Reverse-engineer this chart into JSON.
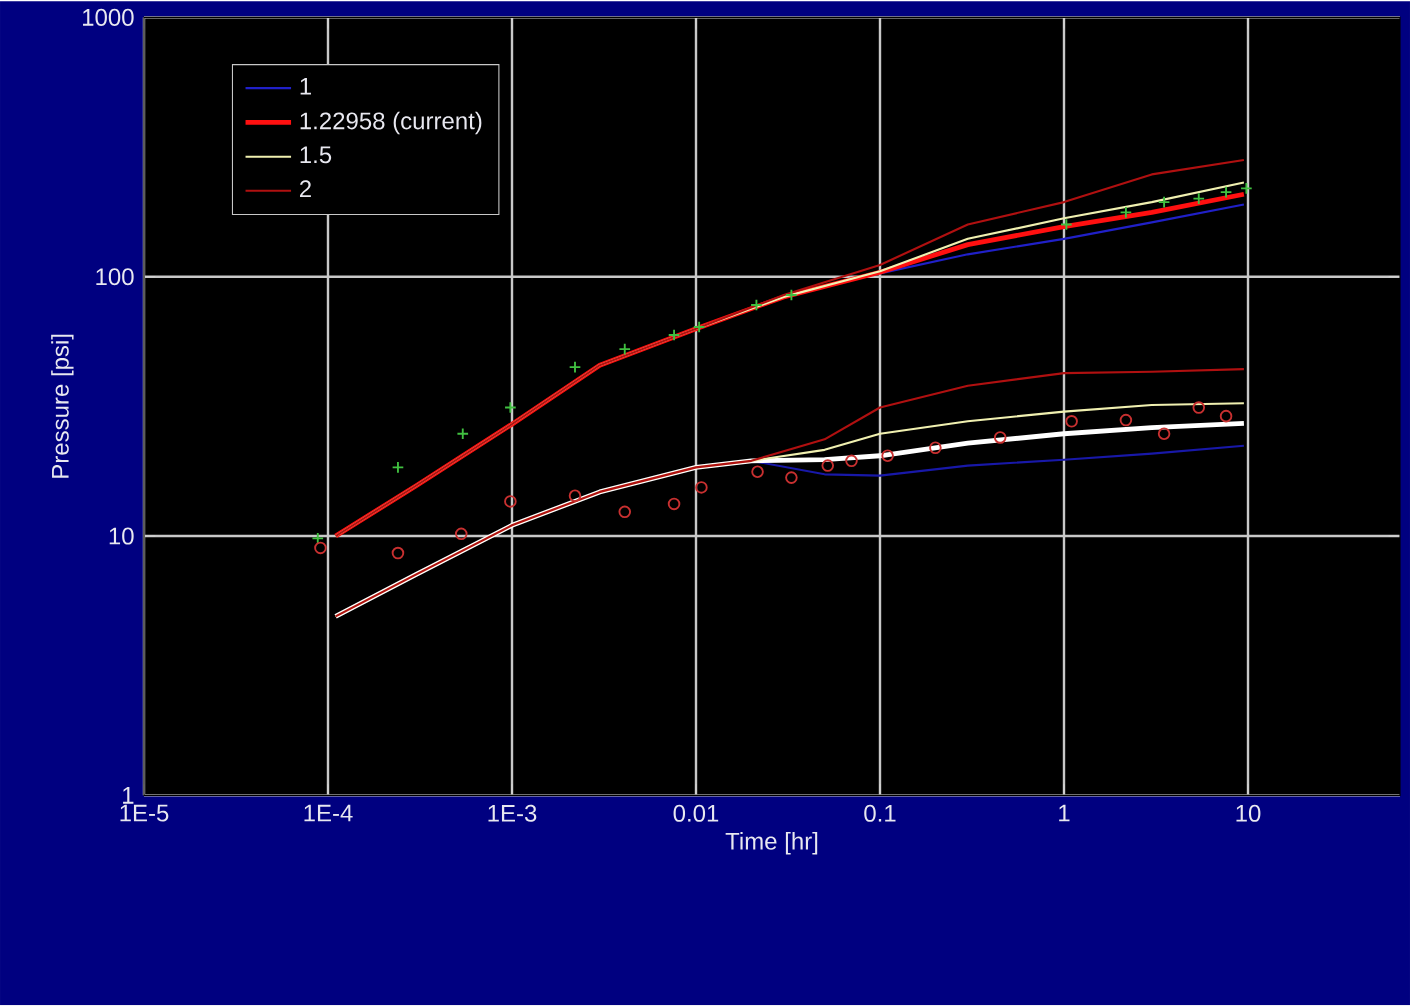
{
  "chart_data": {
    "type": "line",
    "xlabel": "Time [hr]",
    "ylabel": "Pressure [psi]",
    "log": "xy",
    "grid": true,
    "legend": "top left",
    "xlim": [
      1e-05,
      67
    ],
    "ylim": [
      1,
      1000
    ],
    "xticks": [
      {
        "value": 1e-05,
        "label": "1E-5"
      },
      {
        "value": 0.0001,
        "label": "1E-4"
      },
      {
        "value": 0.001,
        "label": "1E-3"
      },
      {
        "value": 0.01,
        "label": "0.01"
      },
      {
        "value": 0.1,
        "label": "0.1"
      },
      {
        "value": 1,
        "label": "1"
      },
      {
        "value": 10,
        "label": "10"
      }
    ],
    "yticks": [
      1,
      10,
      100,
      1000
    ],
    "series": [
      {
        "name": "1",
        "color": "#2020c8",
        "x": [
          0.1,
          0.3,
          1,
          3,
          9.5
        ],
        "values": [
          103,
          122,
          140,
          162,
          190
        ]
      },
      {
        "name": "1.22958  (current)",
        "color": "#ff1010",
        "x": [
          0.00011,
          0.0003,
          0.001,
          0.003,
          0.01,
          0.03,
          0.1,
          0.3,
          1,
          3,
          9.5
        ],
        "values": [
          10,
          15.6,
          27,
          45.6,
          63,
          83.6,
          104,
          133,
          156,
          177,
          208
        ]
      },
      {
        "name": "1.5",
        "color": "#f0f0b0",
        "x": [
          0.00011,
          0.0003,
          0.001,
          0.003,
          0.01,
          0.03,
          0.1,
          0.3,
          1,
          3,
          9.5
        ],
        "values": [
          10,
          15.6,
          27,
          45.6,
          63,
          83.6,
          105,
          140,
          168,
          194,
          231
        ]
      },
      {
        "name": "2",
        "color": "#b01010",
        "x": [
          0.00011,
          0.0003,
          0.001,
          0.003,
          0.01,
          0.03,
          0.1,
          0.3,
          1,
          3,
          9.5
        ],
        "values": [
          10,
          15.6,
          27,
          45.6,
          63,
          85,
          111,
          159,
          194,
          248,
          282
        ]
      },
      {
        "color": "#1818a8",
        "x": [
          0.01,
          0.02,
          0.05,
          0.1,
          0.3,
          1,
          3,
          9.5
        ],
        "values": [
          18.4,
          19.5,
          17.3,
          17.1,
          18.7,
          19.7,
          20.8,
          22.3
        ]
      },
      {
        "color": "#ffffff",
        "x": [
          0.00011,
          0.0003,
          0.001,
          0.003,
          0.01,
          0.02,
          0.05,
          0.1,
          0.3,
          1,
          3,
          9.5
        ],
        "values": [
          4.9,
          7.1,
          11,
          14.8,
          18.4,
          19.5,
          19.7,
          20.4,
          22.8,
          24.8,
          26.2,
          27.2
        ]
      },
      {
        "color": "#f0f0b0",
        "x": [
          0.00011,
          0.0003,
          0.001,
          0.003,
          0.01,
          0.02,
          0.05,
          0.1,
          0.3,
          1,
          3,
          9.5
        ],
        "values": [
          4.9,
          7.1,
          11,
          14.8,
          18.4,
          19.5,
          21.5,
          24.8,
          27.7,
          30.2,
          32,
          32.5
        ]
      },
      {
        "color": "#b01010",
        "x": [
          0.00011,
          0.0003,
          0.001,
          0.003,
          0.01,
          0.02,
          0.05,
          0.1,
          0.3,
          1,
          3,
          9.5
        ],
        "values": [
          4.9,
          7.1,
          11,
          14.8,
          18.4,
          19.5,
          23.6,
          31.3,
          38,
          42.5,
          43,
          44
        ]
      },
      {
        "type": "scatter",
        "marker": "cross",
        "color": "#40c040",
        "x": [
          8.8e-05,
          0.00024,
          0.00054,
          0.00098,
          0.0022,
          0.0041,
          0.0076,
          0.0104,
          0.0213,
          0.033,
          1.03,
          2.17,
          3.5,
          5.4,
          7.6,
          9.8
        ],
        "values": [
          9.8,
          18.4,
          24.8,
          31.3,
          44.8,
          52.6,
          59.6,
          64,
          77.8,
          85,
          159,
          177,
          194,
          200,
          212,
          219
        ]
      },
      {
        "type": "scatter",
        "marker": "circle",
        "color": "#c83030",
        "x": [
          9.1e-05,
          0.00024,
          0.00053,
          0.00098,
          0.0022,
          0.0041,
          0.0076,
          0.0107,
          0.0216,
          0.033,
          0.052,
          0.07,
          0.11,
          0.2,
          0.45,
          1.1,
          2.17,
          3.5,
          5.4,
          7.6
        ],
        "values": [
          9.0,
          8.6,
          10.2,
          13.6,
          14.3,
          12.4,
          13.3,
          15.4,
          17.7,
          16.8,
          18.7,
          19.5,
          20.4,
          21.9,
          24,
          27.7,
          28,
          24.8,
          31.3,
          29
        ]
      }
    ]
  }
}
